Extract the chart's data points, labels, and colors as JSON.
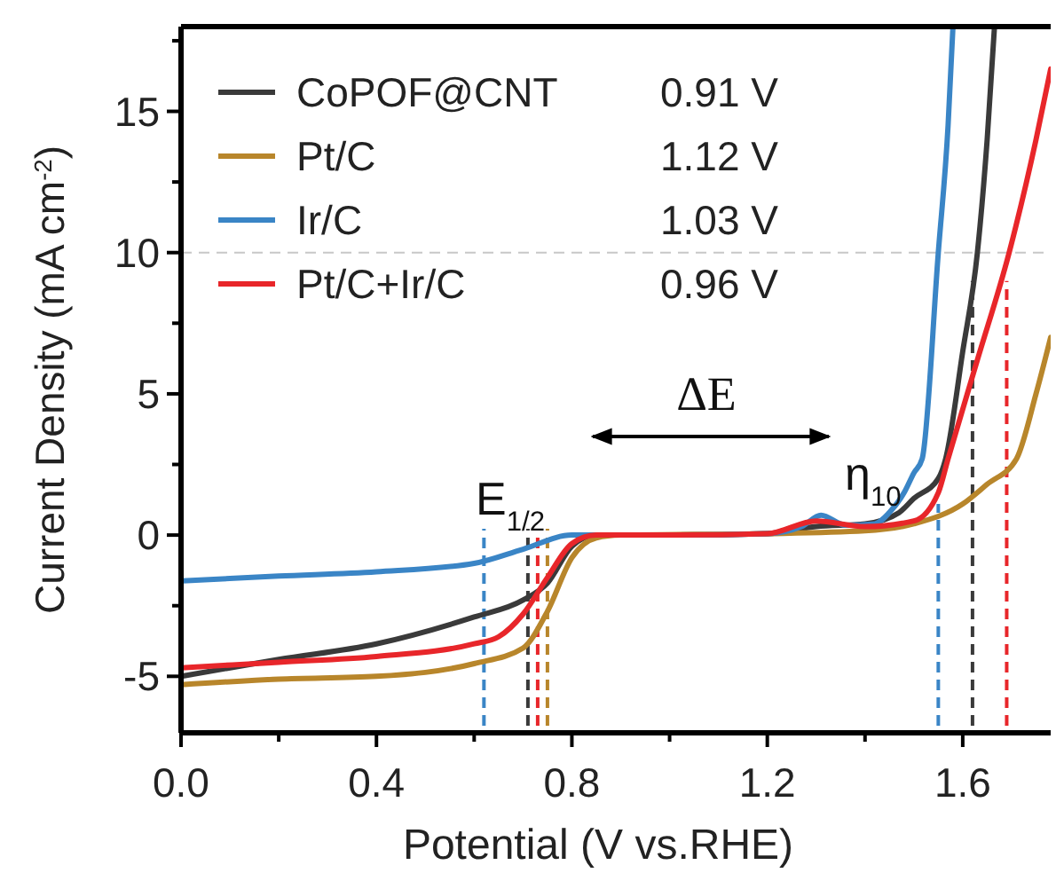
{
  "chart_data": {
    "type": "line",
    "xlabel": "Potential (V vs.RHE)",
    "ylabel": "Current Density (mA cm$^{-2}$)",
    "xlim": [
      0,
      1.78
    ],
    "ylim": [
      -7,
      18
    ],
    "xticks": [
      {
        "value": 0,
        "label": "0.0"
      },
      {
        "value": 0.2,
        "label": null
      },
      {
        "value": 0.4,
        "label": "0.4"
      },
      {
        "value": 0.6,
        "label": null
      },
      {
        "value": 0.8,
        "label": "0.8"
      },
      {
        "value": 1.0,
        "label": null
      },
      {
        "value": 1.2,
        "label": "1.2"
      },
      {
        "value": 1.4,
        "label": null
      },
      {
        "value": 1.6,
        "label": "1.6"
      }
    ],
    "yticks": [
      {
        "value": -5,
        "label": "-5"
      },
      {
        "value": -2.5,
        "label": null
      },
      0,
      {
        "value": 2.5,
        "label": null
      },
      5,
      {
        "value": 7.5,
        "label": null
      },
      10,
      {
        "value": 12.5,
        "label": null
      },
      15,
      {
        "value": 17.5,
        "label": null
      }
    ],
    "legend": "top left",
    "line_style": "solid",
    "marker": "none",
    "grid": false,
    "series": [
      {
        "name": "CoPOF@CNT",
        "color": "#3a3a3a",
        "x": [
          0,
          0.2,
          0.4,
          0.6,
          0.7,
          0.75,
          0.8,
          0.85,
          1.0,
          1.2,
          1.3,
          1.4,
          1.47,
          1.5,
          1.55,
          1.565,
          1.6,
          1.63,
          1.65,
          1.665
        ],
        "values": [
          -5.0,
          -4.4,
          -3.85,
          -2.9,
          -2.3,
          -1.7,
          -0.4,
          0,
          0,
          0.05,
          0.3,
          0.4,
          0.8,
          1.3,
          2.0,
          2.7,
          6.5,
          10,
          14,
          18
        ]
      },
      {
        "name": "Pt/C",
        "color": "#b8862b",
        "x": [
          0,
          0.2,
          0.4,
          0.6,
          0.7,
          0.75,
          0.8,
          0.85,
          0.9,
          1.2,
          1.4,
          1.5,
          1.6,
          1.65,
          1.71,
          1.75,
          1.78
        ],
        "values": [
          -5.3,
          -5.1,
          -5.0,
          -4.55,
          -4.0,
          -2.7,
          -0.8,
          -0.1,
          0,
          0.05,
          0.15,
          0.4,
          1.1,
          1.8,
          2.7,
          5,
          7
        ]
      },
      {
        "name": "Ir/C",
        "color": "#3a85c6",
        "x": [
          0,
          0.2,
          0.4,
          0.6,
          0.7,
          0.8,
          1.0,
          1.2,
          1.27,
          1.31,
          1.36,
          1.42,
          1.45,
          1.48,
          1.5,
          1.517,
          1.55,
          1.57,
          1.58
        ],
        "values": [
          -1.62,
          -1.45,
          -1.3,
          -1.0,
          -0.5,
          0,
          0,
          0.05,
          0.3,
          0.7,
          0.35,
          0.4,
          0.8,
          1.5,
          2.2,
          2.7,
          10,
          14.5,
          18
        ]
      },
      {
        "name": "Pt/C+Ir/C",
        "color": "#e8262a",
        "x": [
          0,
          0.2,
          0.4,
          0.6,
          0.65,
          0.7,
          0.75,
          0.8,
          0.85,
          1.0,
          1.2,
          1.3,
          1.4,
          1.5,
          1.55,
          1.57,
          1.63,
          1.695,
          1.75,
          1.78
        ],
        "values": [
          -4.7,
          -4.5,
          -4.3,
          -3.85,
          -3.6,
          -2.8,
          -1.5,
          -0.3,
          0,
          0,
          0.05,
          0.5,
          0.3,
          0.5,
          1.5,
          2.7,
          6.2,
          10,
          14,
          16.5
        ]
      }
    ],
    "ref_lines": [
      {
        "axis": "y",
        "value": 10,
        "color": "#c8c8c8",
        "line_style": "dashed"
      },
      {
        "axis": "x",
        "value": 0.62,
        "color": "#3a85c6",
        "line_style": "dashed"
      },
      {
        "axis": "x",
        "value": 0.71,
        "color": "#3a3a3a",
        "line_style": "dashed"
      },
      {
        "axis": "x",
        "value": 0.73,
        "color": "#e8262a",
        "line_style": "dashed"
      },
      {
        "axis": "x",
        "value": 0.75,
        "color": "#b8862b",
        "line_style": "dashed"
      },
      {
        "axis": "x",
        "value": 1.55,
        "color": "#3a85c6",
        "line_style": "dashed"
      },
      {
        "axis": "x",
        "value": 1.62,
        "color": "#3a3a3a",
        "line_style": "dashed"
      },
      {
        "axis": "x",
        "value": 1.69,
        "color": "#e8262a",
        "line_style": "dashed"
      }
    ],
    "annotations": [
      "0.91 V",
      "1.12 V",
      "1.03 V",
      "0.96 V",
      "E$_{1/2}$",
      "ΔE",
      "η$_{10}$"
    ]
  }
}
